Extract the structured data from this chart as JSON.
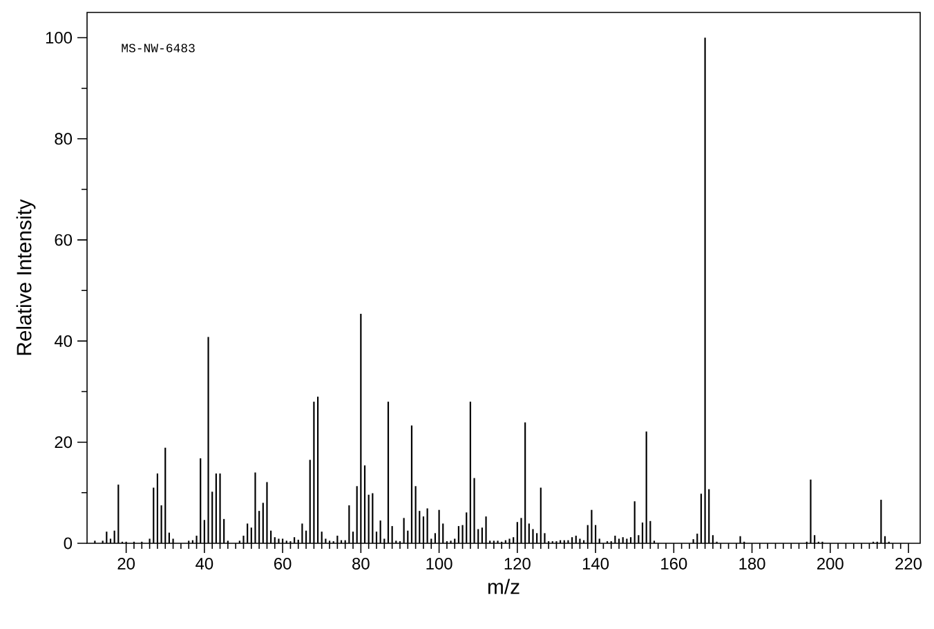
{
  "chart_data": {
    "type": "bar",
    "xlabel": "m/z",
    "ylabel": "Relative Intensity",
    "color": "#000000",
    "annotations": [
      "MS-NW-6483"
    ],
    "x": [
      12,
      14,
      15,
      16,
      17,
      18,
      19,
      20,
      22,
      24,
      26,
      27,
      28,
      29,
      30,
      31,
      32,
      36,
      37,
      38,
      39,
      40,
      41,
      42,
      43,
      44,
      45,
      46,
      49,
      50,
      51,
      52,
      53,
      54,
      55,
      56,
      57,
      58,
      59,
      60,
      61,
      62,
      63,
      64,
      65,
      66,
      67,
      68,
      69,
      70,
      71,
      72,
      73,
      74,
      75,
      76,
      77,
      78,
      79,
      80,
      81,
      82,
      83,
      84,
      85,
      86,
      87,
      88,
      89,
      90,
      91,
      92,
      93,
      94,
      95,
      96,
      97,
      98,
      99,
      100,
      101,
      102,
      103,
      104,
      105,
      106,
      107,
      108,
      109,
      110,
      111,
      112,
      113,
      114,
      115,
      116,
      117,
      118,
      119,
      120,
      121,
      122,
      123,
      124,
      125,
      126,
      127,
      128,
      129,
      130,
      131,
      132,
      133,
      134,
      135,
      136,
      137,
      138,
      139,
      140,
      141,
      143,
      144,
      145,
      146,
      147,
      148,
      149,
      150,
      151,
      152,
      153,
      154,
      155,
      165,
      166,
      167,
      168,
      169,
      170,
      171,
      177,
      178,
      194,
      195,
      196,
      197,
      198,
      211,
      212,
      213,
      214,
      215
    ],
    "values": [
      0.5,
      0.5,
      2.3,
      0.9,
      2.5,
      11.6,
      0.3,
      0.3,
      0.3,
      0.3,
      0.9,
      11.0,
      13.8,
      7.5,
      18.9,
      2.1,
      0.9,
      0.5,
      0.6,
      1.5,
      16.8,
      4.6,
      40.8,
      10.2,
      13.8,
      13.8,
      4.8,
      0.5,
      0.5,
      1.5,
      3.9,
      3.1,
      14.0,
      6.4,
      8.0,
      12.1,
      2.5,
      1.2,
      0.9,
      0.9,
      0.5,
      0.4,
      1.2,
      0.7,
      3.9,
      2.5,
      16.5,
      28.0,
      29.0,
      2.3,
      0.9,
      0.5,
      0.4,
      1.5,
      0.6,
      0.6,
      7.5,
      2.3,
      11.3,
      45.4,
      15.4,
      9.6,
      9.9,
      2.3,
      4.5,
      0.9,
      28.0,
      3.4,
      0.5,
      0.4,
      5.0,
      2.5,
      23.3,
      11.3,
      6.4,
      5.3,
      6.9,
      0.9,
      2.0,
      6.6,
      3.9,
      0.4,
      0.5,
      0.9,
      3.4,
      3.6,
      6.1,
      28.0,
      12.9,
      2.8,
      3.1,
      5.3,
      0.5,
      0.5,
      0.5,
      0.3,
      0.6,
      0.9,
      1.2,
      4.2,
      5.0,
      23.9,
      3.9,
      2.8,
      2.0,
      11.0,
      2.0,
      0.4,
      0.4,
      0.4,
      0.6,
      0.6,
      0.6,
      1.2,
      1.5,
      0.9,
      0.6,
      3.6,
      6.6,
      3.6,
      0.9,
      0.4,
      0.4,
      1.5,
      0.9,
      1.2,
      0.9,
      1.2,
      8.3,
      1.6,
      4.1,
      22.1,
      4.4,
      0.5,
      0.8,
      1.9,
      9.8,
      100,
      10.7,
      1.6,
      0.3,
      1.4,
      0.3,
      0.3,
      12.6,
      1.6,
      0.3,
      0.3,
      0.3,
      0.3,
      8.6,
      1.4,
      0.3
    ],
    "xlim": [
      10,
      223
    ],
    "ylim": [
      0,
      105
    ],
    "xticks": [
      20,
      40,
      60,
      80,
      100,
      120,
      140,
      160,
      180,
      200,
      220
    ],
    "yticks": [
      0,
      20,
      40,
      60,
      80,
      100
    ]
  }
}
